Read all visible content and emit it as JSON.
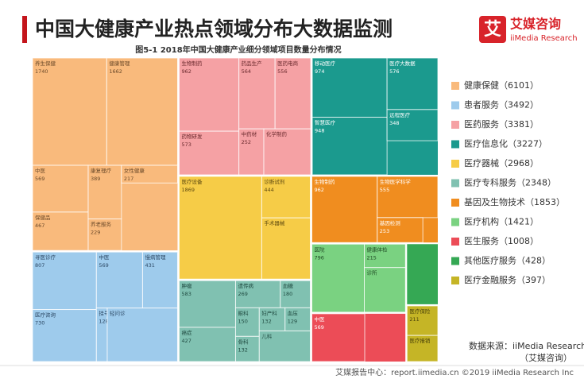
{
  "chart_data": {
    "type": "treemap",
    "title": "中国大健康产业热点领域分布大数据监测",
    "subtitle": "图5-1 2018年中国大健康产业细分领域项目数量分布情况",
    "groups": [
      {
        "name": "健康保健",
        "value": 6101,
        "value_label": "（6101）",
        "color": "#f9ba7c",
        "text_color": "#6b4a2a",
        "children": [
          {
            "name": "养生保健",
            "value": 1740
          },
          {
            "name": "健康管理",
            "value": 1662
          },
          {
            "name": "中医",
            "value": 569
          },
          {
            "name": "保健品",
            "value": 467
          },
          {
            "name": "康复理疗",
            "value": 389
          },
          {
            "name": "养老服务",
            "value": 229
          },
          {
            "name": "女性健康",
            "value": 217
          }
        ]
      },
      {
        "name": "患者服务",
        "value": 3492,
        "value_label": "（3492）",
        "color": "#9ecbec",
        "text_color": "#2e4a66",
        "children": [
          {
            "name": "寻医诊疗",
            "value": 807
          },
          {
            "name": "医疗咨询",
            "value": 730
          },
          {
            "name": "中医",
            "value": 569
          },
          {
            "name": "慢病管理",
            "value": 431
          },
          {
            "name": "挂号",
            "value": 128
          },
          {
            "name": "轻问诊"
          }
        ]
      },
      {
        "name": "医药服务",
        "value": 3381,
        "value_label": "（3381）",
        "color": "#f5a1a4",
        "text_color": "#6a2a2e",
        "children": [
          {
            "name": "生物制药",
            "value": 962
          },
          {
            "name": "药物研发",
            "value": 573
          },
          {
            "name": "药品生产",
            "value": 564
          },
          {
            "name": "医药电商",
            "value": 556
          },
          {
            "name": "中药材",
            "value": 252
          },
          {
            "name": "化学制药"
          }
        ]
      },
      {
        "name": "医疗信息化",
        "value": 3227,
        "value_label": "（3227）",
        "color": "#1b9a8e",
        "text_color": "#ffffff",
        "children": [
          {
            "name": "移动医疗",
            "value": 974
          },
          {
            "name": "智慧医疗",
            "value": 948
          },
          {
            "name": "医疗大数据",
            "value": 576
          },
          {
            "name": "远程医疗",
            "value": 348
          }
        ]
      },
      {
        "name": "医疗器械",
        "value": 2968,
        "value_label": "（2968）",
        "color": "#f6cc47",
        "text_color": "#5e4a10",
        "children": [
          {
            "name": "医疗设备",
            "value": 1869
          },
          {
            "name": "诊断试剂",
            "value": 444
          },
          {
            "name": "手术器械"
          }
        ]
      },
      {
        "name": "医疗专科服务",
        "value": 2348,
        "value_label": "（2348）",
        "color": "#80c1b1",
        "text_color": "#1f4a40",
        "children": [
          {
            "name": "肿瘤",
            "value": 583
          },
          {
            "name": "癌症",
            "value": 427
          },
          {
            "name": "遗传病",
            "value": 269
          },
          {
            "name": "血糖",
            "value": 180
          },
          {
            "name": "眼科",
            "value": 150
          },
          {
            "name": "骨科",
            "value": 132
          },
          {
            "name": "妇产科",
            "value": 132
          },
          {
            "name": "血压",
            "value": 129
          },
          {
            "name": "儿科"
          }
        ]
      },
      {
        "name": "基因及生物技术",
        "value": 1853,
        "value_label": "（1853）",
        "color": "#f08d1f",
        "text_color": "#ffffff",
        "children": [
          {
            "name": "生物制药",
            "value": 962
          },
          {
            "name": "生物医学科学",
            "value": 555
          },
          {
            "name": "基因检测",
            "value": 253
          }
        ]
      },
      {
        "name": "医疗机构",
        "value": 1421,
        "value_label": "（1421）",
        "color": "#7ad281",
        "text_color": "#1f4a24",
        "children": [
          {
            "name": "医院",
            "value": 796
          },
          {
            "name": "健康体检",
            "value": 215
          },
          {
            "name": "诊所"
          }
        ]
      },
      {
        "name": "医生服务",
        "value": 1008,
        "value_label": "（1008）",
        "color": "#ec4c57",
        "text_color": "#ffffff",
        "children": [
          {
            "name": "中医",
            "value": 569
          }
        ]
      },
      {
        "name": "其他医疗服务",
        "value": 428,
        "value_label": "（428）",
        "color": "#35a854",
        "text_color": "#ffffff",
        "children": []
      },
      {
        "name": "医疗金融服务",
        "value": 397,
        "value_label": "（397）",
        "color": "#c5b526",
        "text_color": "#4a420a",
        "children": [
          {
            "name": "医疗保险",
            "value": 211
          },
          {
            "name": "医疗报销"
          }
        ]
      }
    ]
  },
  "branding": {
    "logo_icon": "艾",
    "logo_name": "艾媒咨询",
    "logo_sub": "iiMedia Research",
    "source": "数据来源：iiMedia Research",
    "source_note": "（艾媒咨询）",
    "footer": "艾媒报告中心：report.iimedia.cn ©2019 iiMedia Research Inc"
  }
}
